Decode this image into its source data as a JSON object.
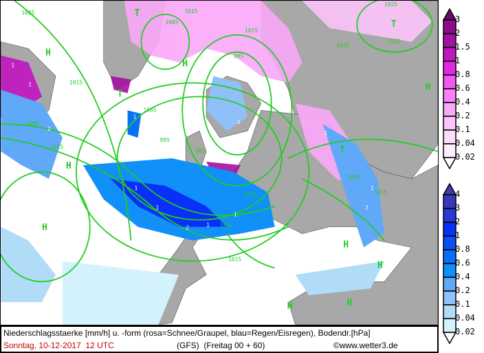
{
  "caption": {
    "line1": "Niederschlagsstaerke [mm/h] u. -form (rosa=Schnee/Graupel, blau=Regen/Eisregen), Bodendr.[hPa]",
    "date": "Sonntag, 10-12-2017  12 UTC",
    "model": "(GFS)  (Freitag 00 + 60)",
    "copyright": "©www.wetter3.de"
  },
  "legend_snow": {
    "labels": [
      "3",
      "2",
      "1.5",
      "1",
      "0.8",
      "0.6",
      "0.4",
      "0.2",
      "0.1",
      "0.04",
      "0.02"
    ],
    "colors": [
      "#6a0a6a",
      "#8c0c8c",
      "#a410a4",
      "#c014c0",
      "#e028e0",
      "#f058f0",
      "#f880f8",
      "#f9a8f9",
      "#fbc4fb",
      "#fcdcfc",
      "#fdecfd",
      "#ffffff"
    ]
  },
  "legend_rain": {
    "labels": [
      "4",
      "3",
      "2",
      "1",
      "0.8",
      "0.6",
      "0.4",
      "0.2",
      "0.1",
      "0.04",
      "0.02"
    ],
    "colors": [
      "#4838a8",
      "#3838b8",
      "#2838d8",
      "#0830f8",
      "#0850f8",
      "#0870f8",
      "#1090f8",
      "#60a8f8",
      "#90c0f8",
      "#b0dcf8",
      "#d4f2fc",
      "#ffffff"
    ]
  },
  "map": {
    "isobar_color": "#22cc22",
    "isobar_labels": [
      "1005",
      "1005",
      "1015",
      "1025",
      "1025",
      "1015",
      "1005",
      "995",
      "985",
      "985",
      "1005",
      "1015",
      "1015",
      "1025",
      "1035",
      "1015",
      "1005",
      "1015",
      "1025"
    ],
    "pressure_centers": [
      "H",
      "H",
      "H",
      "H",
      "H",
      "H",
      "H",
      "T",
      "T",
      "T",
      "T",
      "H",
      "H"
    ],
    "precip_values": [
      "1",
      "1",
      "2",
      "1",
      "1",
      "1",
      "2",
      "1",
      "1",
      "1",
      "1",
      "2",
      "1",
      "1"
    ]
  }
}
